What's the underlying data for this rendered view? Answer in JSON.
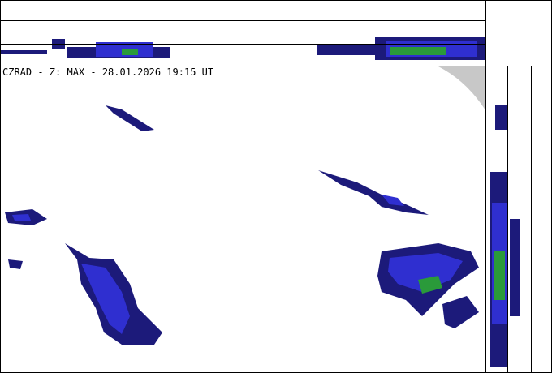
{
  "header": {
    "title": "CZRAD - Z: MAX - 28.01.2026 19:15 UT"
  }
}
